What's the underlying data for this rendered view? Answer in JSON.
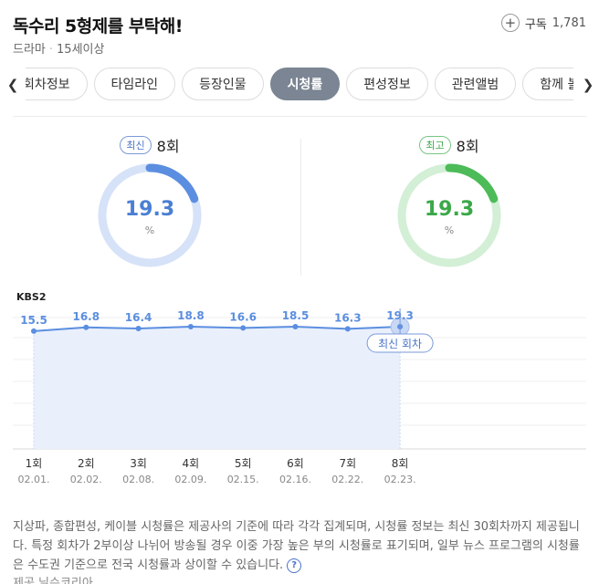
{
  "header": {
    "title": "독수리 5형제를 부탁해!",
    "genre": "드라마",
    "rating": "15세이상",
    "subscribe_label": "구독",
    "subscribe_count": "1,781"
  },
  "tabs": [
    {
      "label": "회차정보"
    },
    {
      "label": "타임라인"
    },
    {
      "label": "등장인물"
    },
    {
      "label": "시청률"
    },
    {
      "label": "편성정보"
    },
    {
      "label": "관련앨범"
    },
    {
      "label": "함께 볼"
    }
  ],
  "gauges": {
    "latest": {
      "badge": "최신",
      "episode": "8회",
      "value": "19.3",
      "unit": "%",
      "color": "#5b8ee0",
      "track": "#d6e2f8"
    },
    "max": {
      "badge": "최고",
      "episode": "8회",
      "value": "19.3",
      "unit": "%",
      "color": "#4cbb58",
      "track": "#d3efd6"
    }
  },
  "chart_title": "KBS2",
  "chart_data": {
    "type": "line",
    "title": "KBS2",
    "categories": [
      "1회",
      "2회",
      "3회",
      "4회",
      "5회",
      "6회",
      "7회",
      "8회"
    ],
    "dates": [
      "02.01.",
      "02.02.",
      "02.08.",
      "02.09.",
      "02.15.",
      "02.16.",
      "02.22.",
      "02.23."
    ],
    "values": [
      15.5,
      16.8,
      16.4,
      18.8,
      16.6,
      18.5,
      16.3,
      19.3
    ],
    "ylim": [
      0,
      100
    ],
    "highlight_label": "최신 회차",
    "highlight_index": 7,
    "line_color": "#5b8ee0"
  },
  "notice": {
    "text": "지상파, 종합편성, 케이블 시청률은 제공사의 기준에 따라 각각 집계되며, 시청률 정보는 최신 30회차까지 제공됩니다. 특정 회차가 2부이상 나뉘어 방송될 경우 이중 가장 높은 부의 시청률로 표기되며, 일부 뉴스 프로그램의 시청률은 수도권 기준으로 전국 시청률과 상이할 수 있습니다.",
    "help_glyph": "?",
    "source": "제공 닐슨코리아"
  }
}
